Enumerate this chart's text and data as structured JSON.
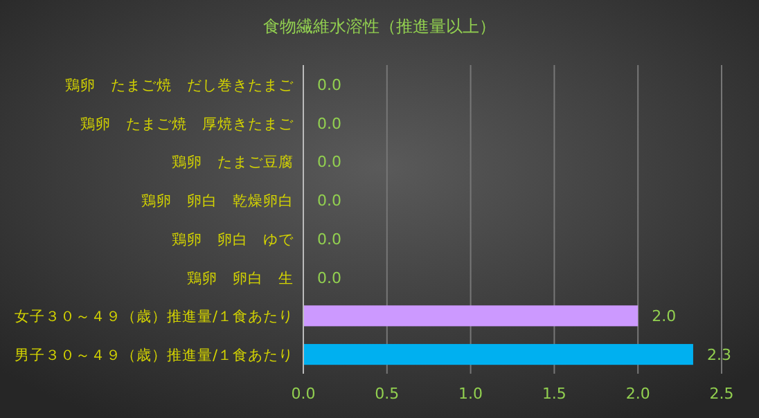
{
  "chart_data": {
    "type": "bar",
    "orientation": "horizontal",
    "title": "食物繊維水溶性（推進量以上）",
    "categories": [
      "鶏卵　たまご焼　だし巻きたまご",
      "鶏卵　たまご焼　厚焼きたまご",
      "鶏卵　たまご豆腐",
      "鶏卵　卵白　乾燥卵白",
      "鶏卵　卵白　ゆで",
      "鶏卵　卵白　生",
      "女子３０～４９（歳）推進量/１食あたり",
      "男子３０～４９（歳）推進量/１食あたり"
    ],
    "values": [
      0,
      0,
      0,
      0,
      0,
      0,
      2.0,
      2.33
    ],
    "value_labels": [
      "0.0",
      "0.0",
      "0.0",
      "0.0",
      "0.0",
      "0.0",
      "2.0",
      "2.3"
    ],
    "colors": [
      "#cc99ff",
      "#cc99ff",
      "#cc99ff",
      "#cc99ff",
      "#cc99ff",
      "#cc99ff",
      "#cc99ff",
      "#00b0f0"
    ],
    "xlim": [
      0,
      2.5
    ],
    "xticks": [
      {
        "value": 0,
        "label": "0.0"
      },
      {
        "value": 0.5,
        "label": "0.5"
      },
      {
        "value": 1,
        "label": "1.0"
      },
      {
        "value": 1.5,
        "label": "1.5"
      },
      {
        "value": 2,
        "label": "2.0"
      },
      {
        "value": 2.5,
        "label": "2.5"
      }
    ],
    "grid": "x"
  }
}
